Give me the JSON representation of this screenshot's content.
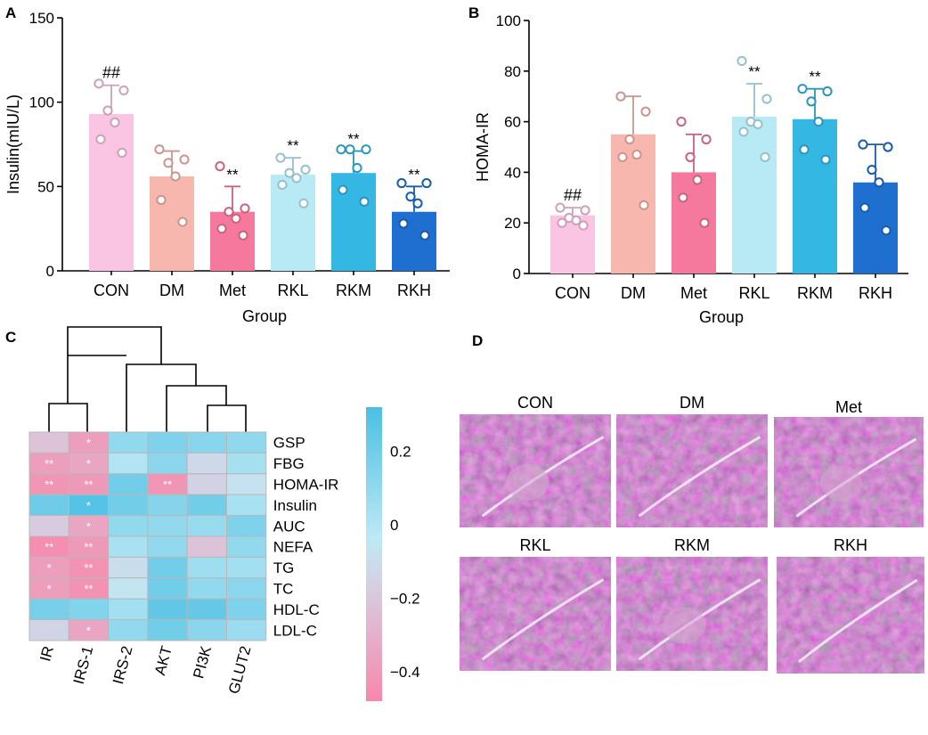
{
  "panels": {
    "A": "A",
    "B": "B",
    "C": "C",
    "D": "D"
  },
  "chart_data": [
    {
      "type": "bar",
      "panel": "A",
      "categories": [
        "CON",
        "DM",
        "Met",
        "RKL",
        "RKM",
        "RKH"
      ],
      "colors": [
        "#f9c5e3",
        "#f7b6ae",
        "#f5799c",
        "#b8eaf6",
        "#35b7e4",
        "#1f6fd1"
      ],
      "values": [
        93,
        56,
        35,
        57,
        58,
        35
      ],
      "errors": [
        17,
        15,
        15,
        10,
        13,
        15
      ],
      "points": [
        [
          111,
          107,
          95,
          88,
          78,
          70
        ],
        [
          72,
          66,
          64,
          56,
          42,
          29
        ],
        [
          62,
          37,
          35,
          31,
          25,
          21
        ],
        [
          67,
          60,
          58,
          55,
          51,
          40
        ],
        [
          72,
          72,
          72,
          61,
          48,
          41
        ],
        [
          52,
          52,
          44,
          40,
          28,
          21
        ]
      ],
      "annotations": [
        "##",
        "",
        "**",
        "**",
        "**",
        "**"
      ],
      "ylabel": "Insulin(mIU/L)",
      "xlabel": "Group",
      "ylim": [
        0,
        150
      ],
      "yticks": [
        "0",
        "50",
        "100",
        "150"
      ]
    },
    {
      "type": "bar",
      "panel": "B",
      "categories": [
        "CON",
        "DM",
        "Met",
        "RKL",
        "RKM",
        "RKH"
      ],
      "colors": [
        "#f9c5e3",
        "#f7b6ae",
        "#f5799c",
        "#b8eaf6",
        "#35b7e4",
        "#1f6fd1"
      ],
      "values": [
        23,
        55,
        40,
        62,
        61,
        36
      ],
      "errors": [
        3,
        15,
        15,
        13,
        12,
        15
      ],
      "points": [
        [
          26,
          25,
          22,
          21,
          20,
          19
        ],
        [
          70,
          64,
          53,
          47,
          46,
          27
        ],
        [
          60,
          53,
          46,
          37,
          30,
          20
        ],
        [
          84,
          69,
          60,
          59,
          56,
          46
        ],
        [
          73,
          72,
          68,
          60,
          49,
          45
        ],
        [
          51,
          50,
          41,
          36,
          26,
          17
        ]
      ],
      "annotations": [
        "##",
        "",
        "",
        "**",
        "**",
        ""
      ],
      "ylabel": "HOMA-IR",
      "xlabel": "Group",
      "ylim": [
        0,
        100
      ],
      "yticks": [
        "0",
        "20",
        "40",
        "60",
        "80",
        "100"
      ]
    },
    {
      "type": "heatmap",
      "panel": "C",
      "columns": [
        "IR",
        "IRS-1",
        "IRS-2",
        "AKT",
        "PI3K",
        "GLUT2"
      ],
      "rows": [
        "GSP",
        "FBG",
        "HOMA-IR",
        "Insulin",
        "AUC",
        "NEFA",
        "TG",
        "TC",
        "HDL-C",
        "LDL-C"
      ],
      "values": [
        [
          -0.22,
          -0.38,
          0.1,
          0.16,
          0.13,
          0.11
        ],
        [
          -0.38,
          -0.35,
          0.0,
          0.12,
          -0.12,
          0.04
        ],
        [
          -0.42,
          -0.4,
          0.2,
          -0.42,
          -0.15,
          -0.08
        ],
        [
          0.21,
          0.29,
          0.2,
          0.14,
          0.2,
          0.03
        ],
        [
          -0.18,
          -0.35,
          0.1,
          0.1,
          0.08,
          0.16
        ],
        [
          -0.45,
          -0.4,
          0.03,
          0.1,
          -0.22,
          0.1
        ],
        [
          -0.38,
          -0.43,
          -0.1,
          0.2,
          0.06,
          0.05
        ],
        [
          -0.38,
          -0.43,
          -0.06,
          0.2,
          0.1,
          0.12
        ],
        [
          0.18,
          0.15,
          0.05,
          0.25,
          0.24,
          0.16
        ],
        [
          -0.14,
          -0.35,
          0.1,
          0.2,
          0.12,
          0.07
        ]
      ],
      "stars": [
        [
          "",
          "*",
          "",
          "",
          "",
          ""
        ],
        [
          "**",
          "*",
          "",
          "",
          "",
          ""
        ],
        [
          "**",
          "**",
          "",
          "**",
          "",
          ""
        ],
        [
          "",
          "*",
          "",
          "",
          "",
          ""
        ],
        [
          "",
          "*",
          "",
          "",
          "",
          ""
        ],
        [
          "**",
          "**",
          "",
          "",
          "",
          ""
        ],
        [
          "*",
          "**",
          "",
          "",
          "",
          ""
        ],
        [
          "*",
          "**",
          "",
          "",
          "",
          ""
        ],
        [
          "",
          "",
          "",
          "",
          "",
          ""
        ],
        [
          "",
          "*",
          "",
          "",
          "",
          ""
        ]
      ],
      "colorbar": {
        "ticks": [
          "0.2",
          "0",
          "-0.2",
          "-0.4"
        ],
        "range": [
          -0.48,
          0.32
        ]
      }
    }
  ],
  "histology": {
    "labels": [
      "CON",
      "DM",
      "Met",
      "RKL",
      "RKM",
      "RKH"
    ]
  }
}
